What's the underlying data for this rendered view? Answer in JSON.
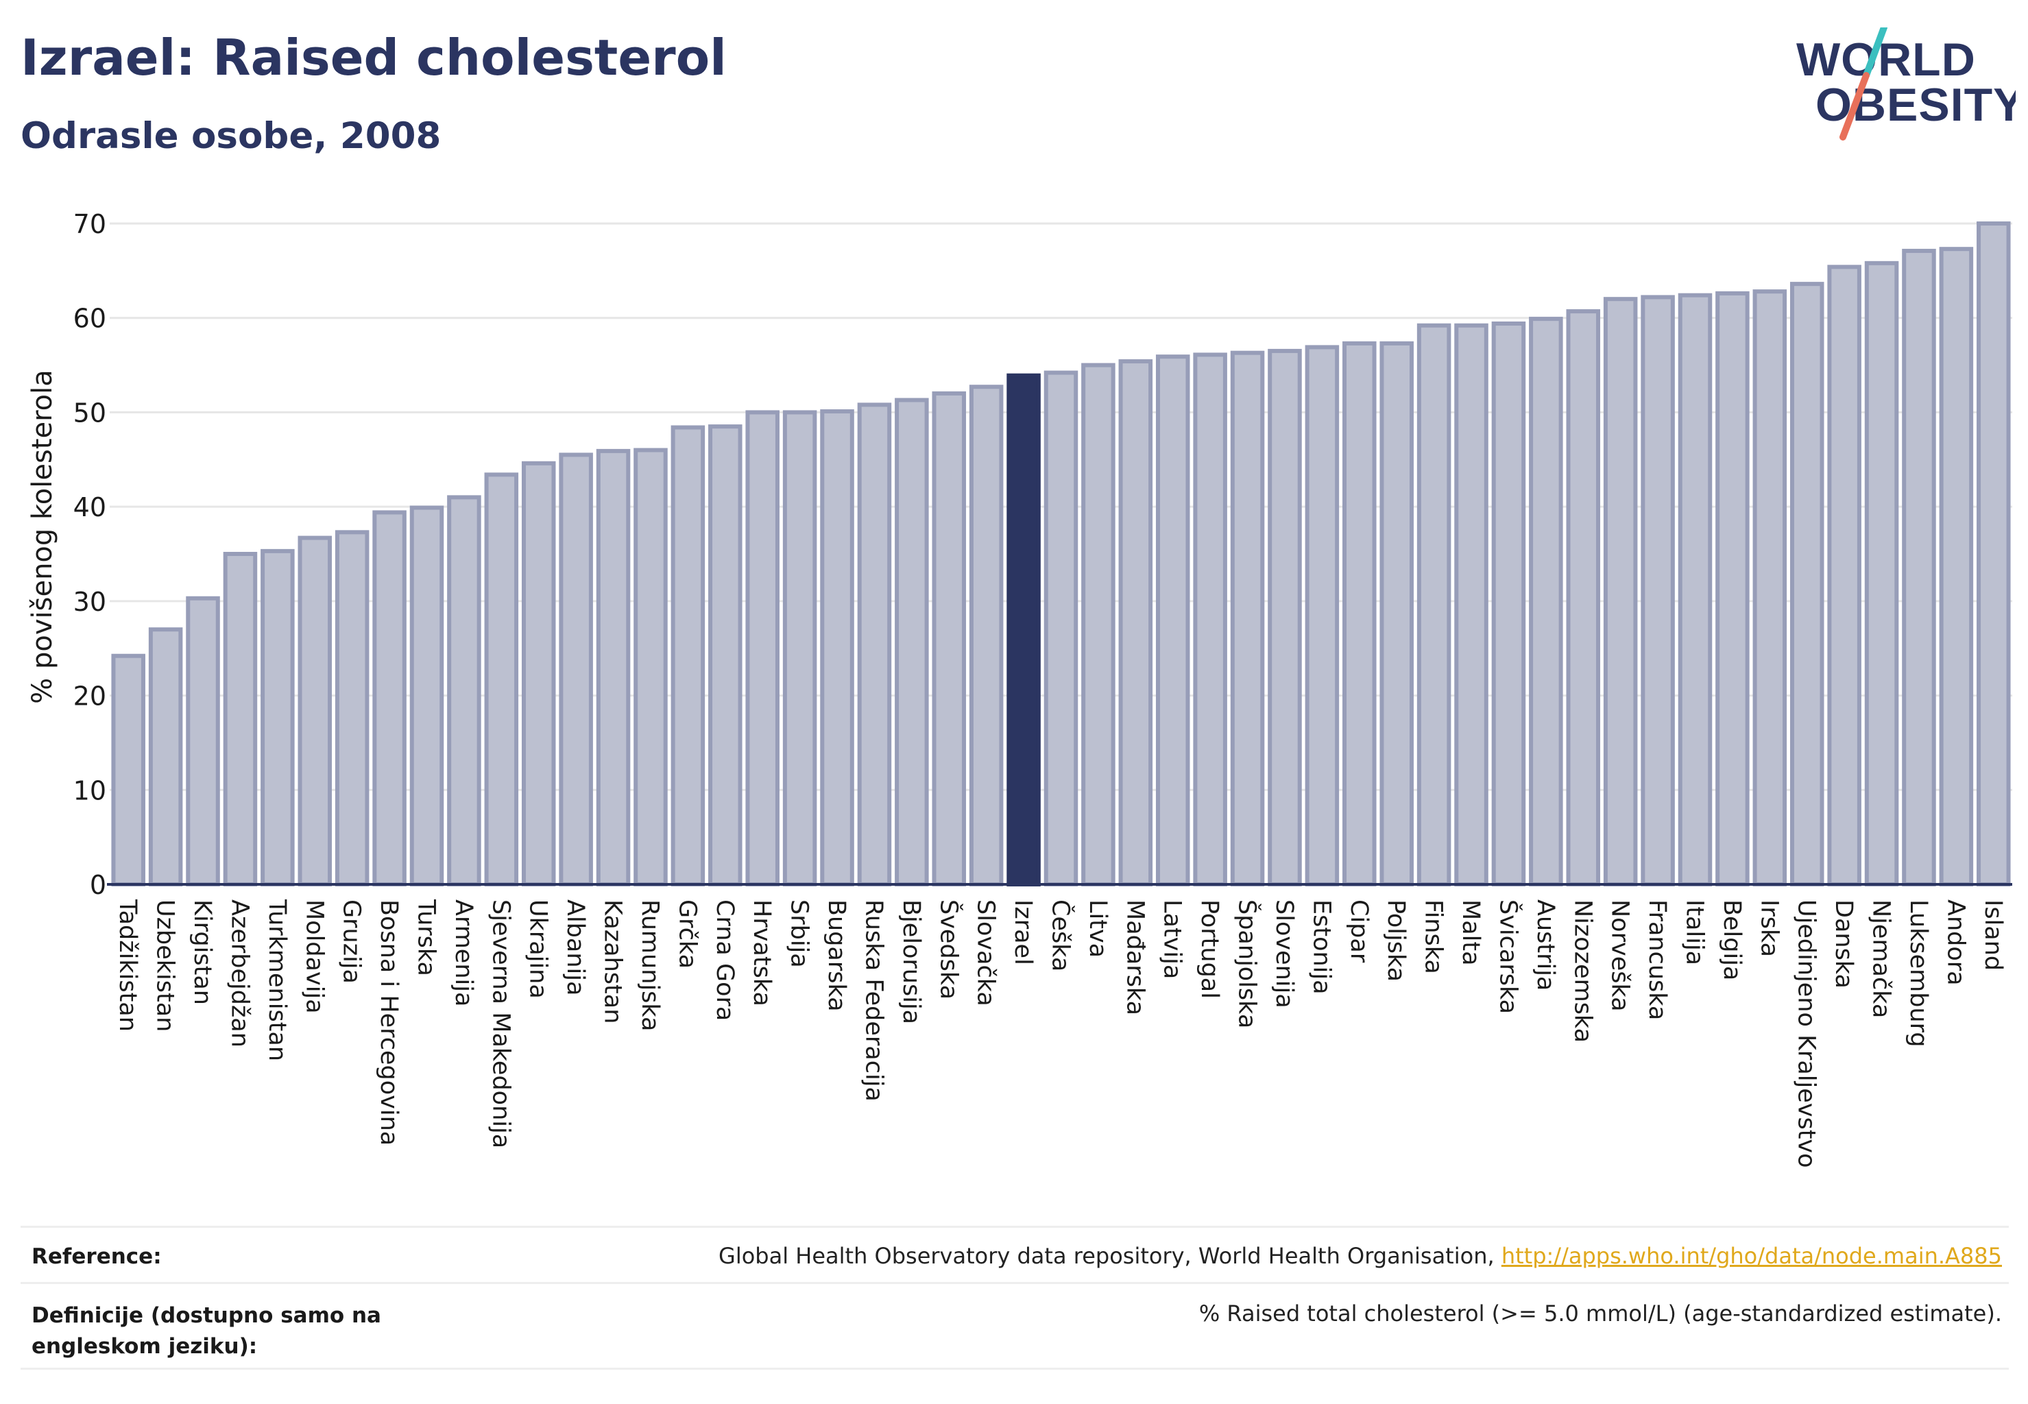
{
  "header": {
    "title": "Izrael: Raised cholesterol",
    "subtitle": "Odrasle osobe, 2008"
  },
  "logo": {
    "line1": "WORLD",
    "line2": "OBESITY"
  },
  "colors": {
    "bar_fill": "#bcc0d0",
    "bar_stroke": "#979db8",
    "highlight": "#2b3561",
    "grid": "#e6e6e6",
    "axis": "#2b3561",
    "logo_teal": "#3bbfbf",
    "logo_coral": "#e8705a",
    "link": "#e0a81c"
  },
  "chart_data": {
    "type": "bar",
    "ylabel": "% povišenog kolesterola",
    "xlabel": "",
    "ylim": [
      0,
      70
    ],
    "yticks": [
      0,
      10,
      20,
      30,
      40,
      50,
      60,
      70
    ],
    "grid": true,
    "highlight": "Izrael",
    "categories": [
      "Tadžikistan",
      "Uzbekistan",
      "Kirgistan",
      "Azerbejdžan",
      "Turkmenistan",
      "Moldavija",
      "Gruzija",
      "Bosna i Hercegovina",
      "Turska",
      "Armenija",
      "Sjeverna Makedonija",
      "Ukrajina",
      "Albanija",
      "Kazahstan",
      "Rumunjska",
      "Grčka",
      "Crna Gora",
      "Hrvatska",
      "Srbija",
      "Bugarska",
      "Ruska Federacija",
      "Bjelorusija",
      "Švedska",
      "Slovačka",
      "Izrael",
      "Češka",
      "Litva",
      "Mađarska",
      "Latvija",
      "Portugal",
      "Španjolska",
      "Slovenija",
      "Estonija",
      "Cipar",
      "Poljska",
      "Finska",
      "Malta",
      "Švicarska",
      "Austrija",
      "Nizozemska",
      "Norveška",
      "Francuska",
      "Italija",
      "Belgija",
      "Irska",
      "Ujedinjeno Kraljevstvo",
      "Danska",
      "Njemačka",
      "Luksemburg",
      "Andora",
      "Island"
    ],
    "values": [
      24.2,
      27.0,
      30.3,
      35.0,
      35.3,
      36.7,
      37.3,
      39.4,
      39.9,
      41.0,
      43.4,
      44.6,
      45.5,
      45.9,
      46.0,
      48.4,
      48.5,
      50.0,
      50.0,
      50.1,
      50.8,
      51.3,
      52.0,
      52.7,
      53.9,
      54.2,
      55.0,
      55.4,
      55.9,
      56.1,
      56.3,
      56.5,
      56.9,
      57.3,
      57.3,
      59.2,
      59.2,
      59.4,
      59.9,
      60.7,
      62.0,
      62.2,
      62.4,
      62.6,
      62.8,
      63.6,
      65.4,
      65.8,
      67.1,
      67.3,
      70.0
    ]
  },
  "footer": {
    "reference_label": "Reference:",
    "reference_text": "Global Health Observatory data repository, World Health Organisation, ",
    "reference_link": "http://apps.who.int/gho/data/node.main.A885",
    "definition_label": "Definicije (dostupno samo na engleskom jeziku):",
    "definition_text": "% Raised total cholesterol (>= 5.0 mmol/L) (age-standardized estimate)."
  }
}
